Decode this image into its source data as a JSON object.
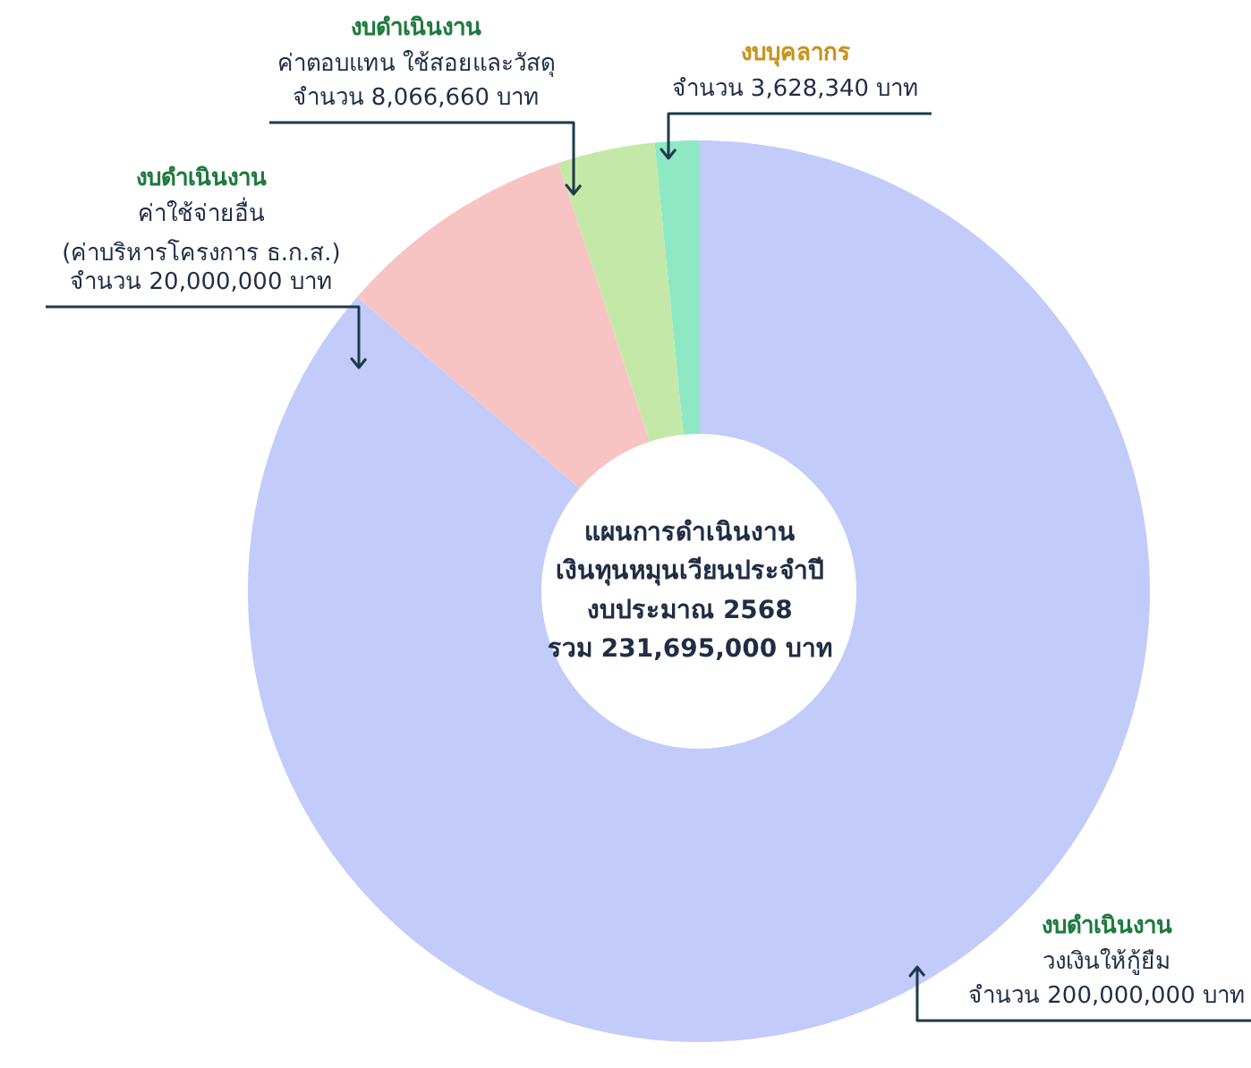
{
  "chart_data": {
    "type": "donut",
    "title": "แผนการดำเนินงาน\nเงินทุนหมุนเวียนประจำปี\nงบประมาณ 2568\nรวม 231,695,000 บาท",
    "categories": [
      "วงเงินให้กู้ยืม",
      "ค่าใช้จ่ายอื่น\n(ค่าบริหารโครงการ ธ.ก.ส.)",
      "ค่าตอบแทน ใช้สอยและวัสดุ",
      "งบบุคลากร"
    ],
    "annotations": [
      "งบดำเนินงาน",
      "งบดำเนินงาน",
      "งบดำเนินงาน"
    ],
    "values": [
      200000000,
      20000000,
      8066660,
      3628340
    ],
    "colors": [
      "#c2cbfa",
      "#f8c3c3",
      "#c4e8a8",
      "#8fe8c4"
    ],
    "value_labels": [
      "จำนวน 200,000,000 บาท",
      "จำนวน 20,000,000 บาท",
      "จำนวน 8,066,660 บาท",
      "จำนวน 3,628,340 บาท"
    ],
    "legend": false
  }
}
